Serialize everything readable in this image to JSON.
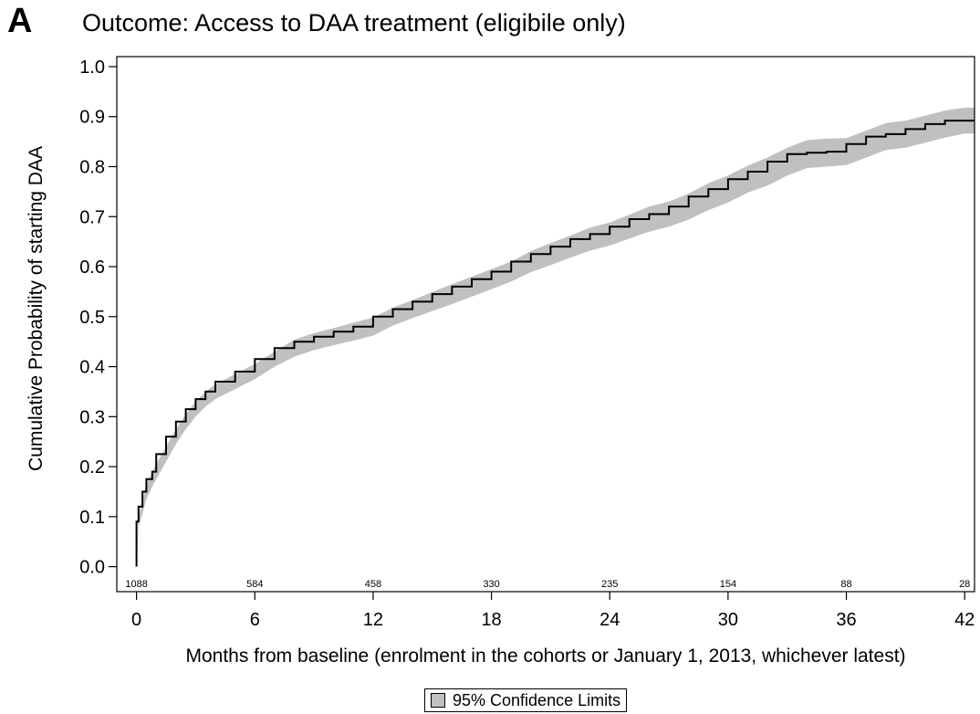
{
  "panel_label": "A",
  "chart_data": {
    "type": "line",
    "title": "Outcome: Access to DAA treatment (eligibile only)",
    "xlabel": "Months from baseline (enrolment in the cohorts or January 1, 2013, whichever latest)",
    "ylabel": "Cumulative Probability of starting DAA",
    "xlim": [
      -1,
      42.5
    ],
    "ylim": [
      -0.05,
      1.02
    ],
    "x_ticks": [
      0,
      6,
      12,
      18,
      24,
      30,
      36,
      42
    ],
    "y_ticks": [
      0.0,
      0.1,
      0.2,
      0.3,
      0.4,
      0.5,
      0.6,
      0.7,
      0.8,
      0.9,
      1.0
    ],
    "y_tick_labels": [
      "0.0",
      "0.1",
      "0.2",
      "0.3",
      "0.4",
      "0.5",
      "0.6",
      "0.7",
      "0.8",
      "0.9",
      "1.0"
    ],
    "grid": false,
    "line_color": "#000000",
    "band_color": "#c0c0c0",
    "series": [
      {
        "x": [
          0,
          0.1,
          0.3,
          0.5,
          0.8,
          1.0,
          1.5,
          2.0,
          2.5,
          3.0,
          3.5,
          4.0,
          5.0,
          6.0,
          7.0,
          8.0,
          9.0,
          10.0,
          11.0,
          12.0,
          13.0,
          14.0,
          15.0,
          16.0,
          17.0,
          18.0,
          19.0,
          20.0,
          21.0,
          22.0,
          23.0,
          24.0,
          25.0,
          26.0,
          27.0,
          28.0,
          29.0,
          30.0,
          31.0,
          32.0,
          33.0,
          34.0,
          35.0,
          36.0,
          37.0,
          38.0,
          39.0,
          40.0,
          41.0,
          42.0,
          42.5
        ],
        "y": [
          0.0,
          0.09,
          0.12,
          0.15,
          0.175,
          0.19,
          0.225,
          0.26,
          0.29,
          0.315,
          0.335,
          0.35,
          0.37,
          0.39,
          0.415,
          0.437,
          0.45,
          0.46,
          0.47,
          0.48,
          0.5,
          0.515,
          0.53,
          0.545,
          0.56,
          0.575,
          0.59,
          0.61,
          0.625,
          0.64,
          0.655,
          0.665,
          0.68,
          0.695,
          0.705,
          0.72,
          0.74,
          0.755,
          0.775,
          0.79,
          0.81,
          0.825,
          0.828,
          0.83,
          0.845,
          0.86,
          0.865,
          0.875,
          0.885,
          0.892,
          0.892
        ],
        "lower": [
          0.0,
          0.08,
          0.105,
          0.135,
          0.16,
          0.175,
          0.21,
          0.245,
          0.275,
          0.3,
          0.32,
          0.335,
          0.355,
          0.375,
          0.4,
          0.42,
          0.433,
          0.443,
          0.452,
          0.462,
          0.482,
          0.497,
          0.511,
          0.525,
          0.54,
          0.555,
          0.57,
          0.589,
          0.603,
          0.618,
          0.632,
          0.642,
          0.656,
          0.67,
          0.68,
          0.694,
          0.713,
          0.728,
          0.748,
          0.762,
          0.782,
          0.797,
          0.8,
          0.803,
          0.818,
          0.833,
          0.838,
          0.848,
          0.858,
          0.866,
          0.866
        ],
        "upper": [
          0.0,
          0.1,
          0.135,
          0.165,
          0.19,
          0.205,
          0.24,
          0.275,
          0.305,
          0.33,
          0.35,
          0.365,
          0.385,
          0.405,
          0.43,
          0.454,
          0.467,
          0.477,
          0.488,
          0.498,
          0.518,
          0.533,
          0.549,
          0.565,
          0.58,
          0.595,
          0.61,
          0.631,
          0.647,
          0.662,
          0.678,
          0.688,
          0.704,
          0.72,
          0.73,
          0.746,
          0.767,
          0.782,
          0.802,
          0.818,
          0.838,
          0.853,
          0.856,
          0.857,
          0.872,
          0.887,
          0.892,
          0.902,
          0.912,
          0.918,
          0.918
        ]
      }
    ],
    "at_risk": [
      {
        "x": 0,
        "n": "1088"
      },
      {
        "x": 6,
        "n": "584"
      },
      {
        "x": 12,
        "n": "458"
      },
      {
        "x": 18,
        "n": "330"
      },
      {
        "x": 24,
        "n": "235"
      },
      {
        "x": 30,
        "n": "154"
      },
      {
        "x": 36,
        "n": "88"
      },
      {
        "x": 42,
        "n": "28"
      }
    ],
    "legend": {
      "position": "bottom-center",
      "label": "95% Confidence Limits"
    }
  }
}
